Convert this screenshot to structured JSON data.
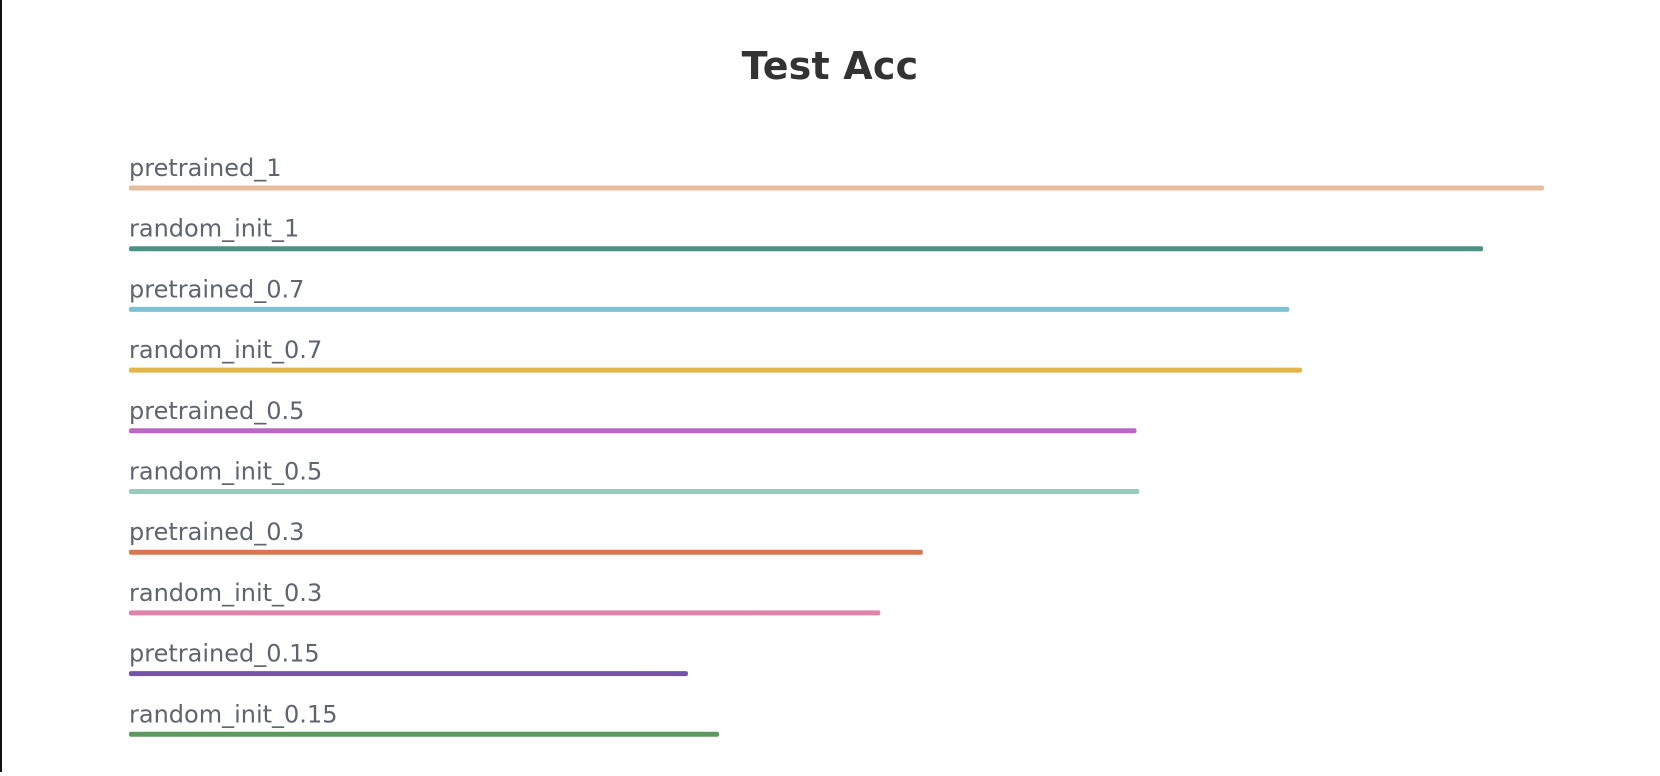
{
  "chart_data": {
    "type": "bar",
    "orientation": "horizontal",
    "title": "Test Acc",
    "xlabel": "",
    "ylabel": "",
    "xlim": [
      0,
      1
    ],
    "grid": false,
    "legend": "none",
    "categories": [
      "pretrained_1",
      "random_init_1",
      "pretrained_0.7",
      "random_init_0.7",
      "pretrained_0.5",
      "random_init_0.5",
      "pretrained_0.3",
      "random_init_0.3",
      "pretrained_0.15",
      "random_init_0.15"
    ],
    "values": [
      1.0,
      0.957,
      0.82,
      0.829,
      0.712,
      0.714,
      0.561,
      0.531,
      0.395,
      0.417
    ],
    "colors": [
      "#e8bc9f",
      "#4a9383",
      "#7dc2d3",
      "#e4b54a",
      "#b86ac2",
      "#99cbbd",
      "#d9774e",
      "#df84a8",
      "#7453a9",
      "#5b9a5f"
    ]
  }
}
